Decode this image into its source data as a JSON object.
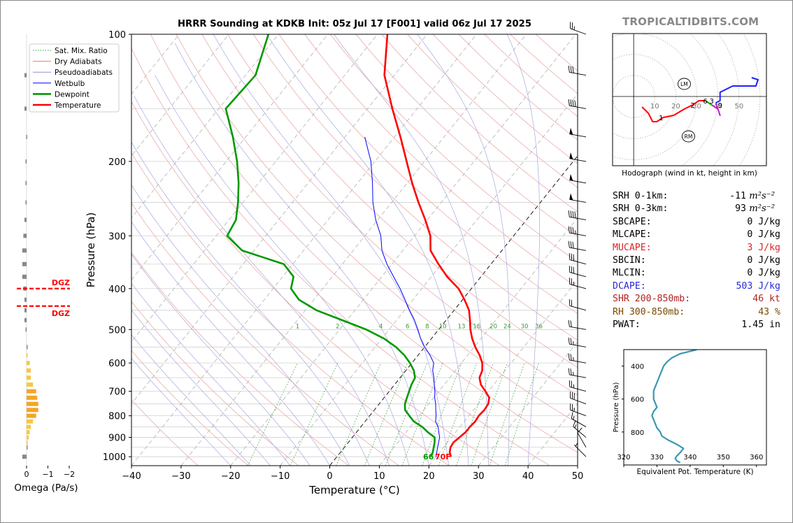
{
  "brand": "TROPICALTIDBITS.COM",
  "chart_data": [
    {
      "type": "line",
      "name": "skewt",
      "title": "HRRR Sounding at KDKB Init: 05z Jul 17 [F001] valid 06z Jul 17 2025",
      "xlabel": "Temperature (°C)",
      "ylabel": "Pressure (hPa)",
      "xlim": [
        -40,
        50
      ],
      "ylim": [
        1050,
        100
      ],
      "yscale": "log",
      "x_ticks": [
        -40,
        -30,
        -20,
        -10,
        0,
        10,
        20,
        30,
        40,
        50
      ],
      "y_ticks": [
        100,
        200,
        300,
        400,
        500,
        600,
        700,
        800,
        900,
        1000
      ],
      "legend": {
        "position": "top-left",
        "entries": [
          {
            "label": "Sat. Mix. Ratio",
            "color": "#2ca02c",
            "style": "dotted"
          },
          {
            "label": "Dry Adiabats",
            "color": "#e08080",
            "style": "solid"
          },
          {
            "label": "Pseudoadiabats",
            "color": "#9090d0",
            "style": "solid"
          },
          {
            "label": "Wetbulb",
            "color": "#0000ff",
            "style": "solid"
          },
          {
            "label": "Dewpoint",
            "color": "#009900",
            "style": "solid"
          },
          {
            "label": "Temperature",
            "color": "#ff0000",
            "style": "solid"
          }
        ]
      },
      "mixing_ratio_labels": [
        "1",
        "2",
        "4",
        "6",
        "8",
        "10",
        "13",
        "16",
        "20",
        "24",
        "30",
        "36"
      ],
      "mixing_ratio_values": [
        1,
        2,
        4,
        6,
        8,
        10,
        13,
        16,
        20,
        24,
        30,
        36
      ],
      "surface_labels": {
        "dewpoint": "66",
        "temperature": "70F"
      },
      "dgz_label": "DGZ",
      "series": [
        {
          "name": "Temperature",
          "color": "#ff0000",
          "p": [
            1000,
            975,
            950,
            925,
            900,
            875,
            850,
            825,
            800,
            775,
            750,
            725,
            700,
            675,
            650,
            625,
            600,
            575,
            550,
            525,
            500,
            475,
            450,
            425,
            400,
            375,
            350,
            325,
            300,
            275,
            250,
            225,
            200,
            175,
            150,
            125,
            100
          ],
          "t": [
            23.0,
            22.0,
            21.4,
            21.2,
            21.6,
            22.0,
            22.0,
            22.2,
            22.0,
            22.2,
            22.0,
            21.2,
            19.4,
            17.4,
            16.0,
            15.4,
            14.2,
            12.4,
            10.2,
            8.2,
            6.4,
            4.8,
            3.0,
            0.4,
            -2.6,
            -6.8,
            -10.6,
            -14.4,
            -16.8,
            -20.4,
            -24.6,
            -29.0,
            -33.6,
            -38.8,
            -45.0,
            -52.0,
            -58.0
          ]
        },
        {
          "name": "Dewpoint",
          "color": "#009900",
          "p": [
            1000,
            975,
            950,
            925,
            900,
            875,
            850,
            825,
            800,
            775,
            750,
            725,
            700,
            675,
            650,
            625,
            600,
            575,
            550,
            525,
            500,
            475,
            450,
            425,
            400,
            375,
            350,
            325,
            300,
            275,
            250,
            225,
            200,
            175,
            150,
            125,
            100
          ],
          "t": [
            19.0,
            18.6,
            18.0,
            17.4,
            16.6,
            14.4,
            12.4,
            9.8,
            8.0,
            6.2,
            5.2,
            4.6,
            4.0,
            3.4,
            3.0,
            1.6,
            -0.4,
            -2.8,
            -5.8,
            -9.6,
            -14.6,
            -21.0,
            -27.8,
            -33.0,
            -36.4,
            -37.8,
            -41.8,
            -52.4,
            -57.8,
            -58.6,
            -61.0,
            -64.0,
            -67.8,
            -72.6,
            -78.6,
            -78.0,
            -82.0
          ]
        },
        {
          "name": "Wetbulb",
          "color": "#0000ff",
          "p": [
            1000,
            975,
            950,
            925,
            900,
            875,
            850,
            825,
            800,
            775,
            750,
            725,
            700,
            675,
            650,
            625,
            600,
            575,
            550,
            525,
            500,
            475,
            450,
            425,
            400,
            375,
            350,
            325,
            300,
            275,
            250,
            225,
            200,
            175
          ],
          "t": [
            20.0,
            19.4,
            18.8,
            18.2,
            17.6,
            16.6,
            15.6,
            14.2,
            13.4,
            12.4,
            11.4,
            10.2,
            9.2,
            8.0,
            6.8,
            5.4,
            4.4,
            2.4,
            0.0,
            -2.2,
            -4.2,
            -6.4,
            -9.0,
            -11.6,
            -14.4,
            -17.6,
            -21.0,
            -24.2,
            -26.8,
            -30.4,
            -33.8,
            -37.0,
            -40.8,
            -46.0
          ]
        }
      ],
      "wind_barbs": [
        {
          "p": 1000,
          "dir": 315,
          "kt": 5
        },
        {
          "p": 950,
          "dir": 330,
          "kt": 10
        },
        {
          "p": 900,
          "dir": 310,
          "kt": 15
        },
        {
          "p": 850,
          "dir": 300,
          "kt": 15
        },
        {
          "p": 800,
          "dir": 290,
          "kt": 25
        },
        {
          "p": 750,
          "dir": 290,
          "kt": 30
        },
        {
          "p": 700,
          "dir": 285,
          "kt": 25
        },
        {
          "p": 650,
          "dir": 280,
          "kt": 25
        },
        {
          "p": 600,
          "dir": 280,
          "kt": 25
        },
        {
          "p": 550,
          "dir": 280,
          "kt": 25
        },
        {
          "p": 500,
          "dir": 280,
          "kt": 20
        },
        {
          "p": 450,
          "dir": 285,
          "kt": 20
        },
        {
          "p": 400,
          "dir": 285,
          "kt": 25
        },
        {
          "p": 375,
          "dir": 285,
          "kt": 30
        },
        {
          "p": 350,
          "dir": 285,
          "kt": 30
        },
        {
          "p": 325,
          "dir": 280,
          "kt": 30
        },
        {
          "p": 300,
          "dir": 280,
          "kt": 35
        },
        {
          "p": 275,
          "dir": 280,
          "kt": 40
        },
        {
          "p": 250,
          "dir": 280,
          "kt": 50
        },
        {
          "p": 225,
          "dir": 280,
          "kt": 50
        },
        {
          "p": 200,
          "dir": 280,
          "kt": 50
        },
        {
          "p": 175,
          "dir": 280,
          "kt": 50
        },
        {
          "p": 150,
          "dir": 280,
          "kt": 40
        },
        {
          "p": 125,
          "dir": 280,
          "kt": 30
        },
        {
          "p": 100,
          "dir": 290,
          "kt": 25
        }
      ]
    },
    {
      "type": "bar",
      "name": "omega",
      "xlabel": "Omega (Pa/s)",
      "xlim": [
        0,
        -2
      ],
      "x_ticks": [
        0,
        -1,
        -2
      ],
      "x_tick_labels": [
        "0",
        "−1",
        "−2"
      ],
      "levels": [
        {
          "p": 1000,
          "omega": 0.2
        },
        {
          "p": 950,
          "omega": 0.0
        },
        {
          "p": 925,
          "omega": -0.05
        },
        {
          "p": 900,
          "omega": -0.1
        },
        {
          "p": 875,
          "omega": -0.15
        },
        {
          "p": 850,
          "omega": -0.2
        },
        {
          "p": 825,
          "omega": -0.3
        },
        {
          "p": 800,
          "omega": -0.45
        },
        {
          "p": 775,
          "omega": -0.55
        },
        {
          "p": 750,
          "omega": -0.55
        },
        {
          "p": 725,
          "omega": -0.5
        },
        {
          "p": 700,
          "omega": -0.45
        },
        {
          "p": 675,
          "omega": -0.3
        },
        {
          "p": 650,
          "omega": -0.2
        },
        {
          "p": 625,
          "omega": -0.2
        },
        {
          "p": 600,
          "omega": -0.15
        },
        {
          "p": 575,
          "omega": -0.05
        },
        {
          "p": 550,
          "omega": 0.0
        },
        {
          "p": 500,
          "omega": 0.05
        },
        {
          "p": 475,
          "omega": 0.1
        },
        {
          "p": 450,
          "omega": 0.1
        },
        {
          "p": 425,
          "omega": 0.1
        },
        {
          "p": 400,
          "omega": 0.15
        },
        {
          "p": 375,
          "omega": 0.2
        },
        {
          "p": 350,
          "omega": 0.2
        },
        {
          "p": 325,
          "omega": 0.2
        },
        {
          "p": 300,
          "omega": 0.15
        },
        {
          "p": 275,
          "omega": 0.1
        },
        {
          "p": 250,
          "omega": 0.05
        },
        {
          "p": 225,
          "omega": 0.05
        },
        {
          "p": 200,
          "omega": 0.05
        },
        {
          "p": 175,
          "omega": 0.02
        },
        {
          "p": 150,
          "omega": 0.1
        },
        {
          "p": 125,
          "omega": 0.1
        }
      ],
      "dgz": {
        "label": "DGZ",
        "top_p": 400,
        "bottom_p": 440
      }
    },
    {
      "type": "line",
      "name": "hodograph",
      "title": "Hodograph (wind in kt, height in km)",
      "xlim": [
        -10,
        63
      ],
      "ylim": [
        -33,
        30
      ],
      "ring_labels": [
        "10",
        "20",
        "30",
        "40",
        "50"
      ],
      "ring_values": [
        10,
        20,
        30,
        40,
        50
      ],
      "height_labels": [
        {
          "label": "1",
          "u": 13,
          "v": -10
        },
        {
          "label": "2",
          "u": 28,
          "v": -4
        },
        {
          "label": "6",
          "u": 34,
          "v": -2
        },
        {
          "label": "3",
          "u": 37,
          "v": -2
        },
        {
          "label": "9",
          "u": 41,
          "v": -4
        }
      ],
      "storm_motion": [
        {
          "label": "LM",
          "u": 24,
          "v": 6
        },
        {
          "label": "RM",
          "u": 26,
          "v": -19
        }
      ],
      "segments": [
        {
          "color": "#ff0000",
          "points": [
            [
              4,
              -5
            ],
            [
              7,
              -8
            ],
            [
              9,
              -12
            ],
            [
              11,
              -12
            ],
            [
              14,
              -10
            ],
            [
              19,
              -9
            ],
            [
              24,
              -6
            ],
            [
              28,
              -4
            ],
            [
              31,
              -2
            ],
            [
              34,
              -2
            ]
          ]
        },
        {
          "color": "#00aa00",
          "points": [
            [
              34,
              -2
            ],
            [
              37,
              -4
            ]
          ]
        },
        {
          "color": "#c020c0",
          "points": [
            [
              37,
              -4
            ],
            [
              40,
              -6
            ],
            [
              41,
              -9
            ],
            [
              40,
              -6
            ],
            [
              39,
              -3
            ]
          ]
        },
        {
          "color": "#2020ff",
          "points": [
            [
              39,
              -3
            ],
            [
              41,
              -2
            ],
            [
              41,
              2
            ],
            [
              47,
              5
            ],
            [
              52,
              5
            ],
            [
              58,
              5
            ],
            [
              59,
              8
            ],
            [
              56,
              9
            ]
          ]
        }
      ]
    },
    {
      "type": "line",
      "name": "theta_e",
      "xlabel": "Equivalent Pot. Temperature (K)",
      "ylabel": "Pressure (hPa)",
      "xlim": [
        320,
        363
      ],
      "ylim": [
        1000,
        300
      ],
      "x_ticks": [
        320,
        330,
        340,
        350,
        360
      ],
      "y_ticks": [
        400,
        600,
        800
      ],
      "series": [
        {
          "name": "theta-e",
          "color": "#3a98b0",
          "p": [
            985,
            975,
            960,
            945,
            925,
            900,
            875,
            850,
            825,
            800,
            775,
            750,
            725,
            700,
            675,
            650,
            625,
            600,
            575,
            550,
            525,
            500,
            475,
            450,
            425,
            400,
            375,
            350,
            325,
            300
          ],
          "t": [
            337.0,
            336.0,
            335.5,
            336.0,
            337.0,
            338.0,
            336.0,
            333.5,
            331.5,
            331.0,
            330.0,
            329.5,
            329.0,
            328.5,
            329.0,
            330.0,
            329.5,
            329.0,
            329.0,
            329.0,
            329.5,
            330.0,
            330.5,
            331.0,
            331.5,
            332.0,
            333.0,
            334.5,
            337.0,
            342.0
          ]
        }
      ]
    }
  ],
  "stats": [
    {
      "label": "SRH 0-1km:",
      "value": "-11",
      "unit": "m²s⁻²",
      "color": "#000000"
    },
    {
      "label": "SRH 0-3km:",
      "value": "93",
      "unit": "m²s⁻²",
      "color": "#000000"
    },
    {
      "label": "SBCAPE:",
      "value": "0 J/kg",
      "unit": "",
      "color": "#000000"
    },
    {
      "label": "MLCAPE:",
      "value": "0 J/kg",
      "unit": "",
      "color": "#000000"
    },
    {
      "label": "MUCAPE:",
      "value": "3 J/kg",
      "unit": "",
      "color": "#d62728"
    },
    {
      "label": "SBCIN:",
      "value": "0 J/kg",
      "unit": "",
      "color": "#000000"
    },
    {
      "label": "MLCIN:",
      "value": "0 J/kg",
      "unit": "",
      "color": "#000000"
    },
    {
      "label": "DCAPE:",
      "value": "503 J/kg",
      "unit": "",
      "color": "#2a2ad6"
    },
    {
      "label": "SHR 200-850mb:",
      "value": "46 kt",
      "unit": "",
      "color": "#b22222"
    },
    {
      "label": "RH 300-850mb:",
      "value": "43 %",
      "unit": "",
      "color": "#7a4a00"
    },
    {
      "label": "PWAT:",
      "value": "1.45 in",
      "unit": "",
      "color": "#000000"
    }
  ]
}
